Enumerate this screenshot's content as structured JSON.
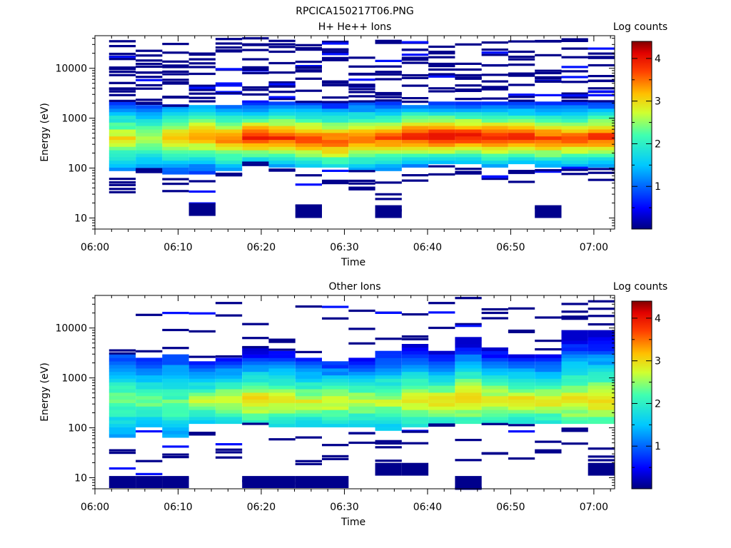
{
  "figure_title": "RPCICA150217T06.PNG",
  "chart_data": [
    {
      "type": "heatmap",
      "title": "H+ He++ Ions",
      "xlabel": "Time",
      "ylabel": "Energy (eV)",
      "y_scale": "log",
      "ylim": [
        6,
        45000
      ],
      "xlim_minutes": [
        0,
        62.5
      ],
      "x_ticks": [
        "06:00",
        "06:10",
        "06:20",
        "06:30",
        "06:40",
        "06:50",
        "07:00"
      ],
      "y_ticks": [
        "10",
        "100",
        "1000",
        "10000"
      ],
      "colorbar_label": "Log counts",
      "colorbar_ticks": [
        "1",
        "2",
        "3",
        "4"
      ],
      "colorbar_range": [
        0,
        4.4
      ],
      "columns": [
        {
          "time_min": [
            1.7,
            4.9
          ],
          "core_level": 3.0,
          "core_low": 90,
          "core_high": 2000,
          "peak": 400,
          "stripes_high": 18,
          "stripes_low": 5,
          "min_energy": 22
        },
        {
          "time_min": [
            4.9,
            8.1
          ],
          "core_level": 2.8,
          "core_low": 95,
          "core_high": 1900,
          "peak": 380,
          "stripes_high": 14,
          "stripes_low": 3,
          "min_energy": 80
        },
        {
          "time_min": [
            8.1,
            11.3
          ],
          "core_level": 3.2,
          "core_low": 70,
          "core_high": 1700,
          "peak": 420,
          "stripes_high": 14,
          "stripes_low": 3,
          "min_energy": 18
        },
        {
          "time_min": [
            11.3,
            14.5
          ],
          "core_level": 3.4,
          "core_low": 80,
          "core_high": 1800,
          "peak": 450,
          "stripes_high": 12,
          "stripes_low": 3,
          "min_energy": 11
        },
        {
          "time_min": [
            14.5,
            17.7
          ],
          "core_level": 3.5,
          "core_low": 90,
          "core_high": 1900,
          "peak": 380,
          "stripes_high": 13,
          "stripes_low": 3,
          "min_energy": 70
        },
        {
          "time_min": [
            17.7,
            20.9
          ],
          "core_level": 4.0,
          "core_low": 120,
          "core_high": 2000,
          "peak": 420,
          "stripes_high": 13,
          "stripes_low": 2,
          "min_energy": 110
        },
        {
          "time_min": [
            20.9,
            24.1
          ],
          "core_level": 3.9,
          "core_low": 110,
          "core_high": 2000,
          "peak": 420,
          "stripes_high": 14,
          "stripes_low": 2,
          "min_energy": 80
        },
        {
          "time_min": [
            24.1,
            27.3
          ],
          "core_level": 3.8,
          "core_low": 100,
          "core_high": 2100,
          "peak": 380,
          "stripes_high": 12,
          "stripes_low": 3,
          "min_energy": 10
        },
        {
          "time_min": [
            27.3,
            30.5
          ],
          "core_level": 3.8,
          "core_low": 100,
          "core_high": 2100,
          "peak": 350,
          "stripes_high": 13,
          "stripes_low": 4,
          "min_energy": 40
        },
        {
          "time_min": [
            30.5,
            33.7
          ],
          "core_level": 3.6,
          "core_low": 90,
          "core_high": 2000,
          "peak": 380,
          "stripes_high": 13,
          "stripes_low": 5,
          "min_energy": 35
        },
        {
          "time_min": [
            33.7,
            36.9
          ],
          "core_level": 3.7,
          "core_low": 90,
          "core_high": 2000,
          "peak": 400,
          "stripes_high": 12,
          "stripes_low": 4,
          "min_energy": 10
        },
        {
          "time_min": [
            36.9,
            40.1
          ],
          "core_level": 4.1,
          "core_low": 110,
          "core_high": 1900,
          "peak": 450,
          "stripes_high": 14,
          "stripes_low": 2,
          "min_energy": 45
        },
        {
          "time_min": [
            40.1,
            43.3
          ],
          "core_level": 4.2,
          "core_low": 120,
          "core_high": 2000,
          "peak": 450,
          "stripes_high": 12,
          "stripes_low": 2,
          "min_energy": 60
        },
        {
          "time_min": [
            43.3,
            46.5
          ],
          "core_level": 4.1,
          "core_low": 120,
          "core_high": 2000,
          "peak": 430,
          "stripes_high": 11,
          "stripes_low": 3,
          "min_energy": 75
        },
        {
          "time_min": [
            46.5,
            49.7
          ],
          "core_level": 4.0,
          "core_low": 110,
          "core_high": 2000,
          "peak": 420,
          "stripes_high": 12,
          "stripes_low": 4,
          "min_energy": 60
        },
        {
          "time_min": [
            49.7,
            52.9
          ],
          "core_level": 3.9,
          "core_low": 120,
          "core_high": 2000,
          "peak": 430,
          "stripes_high": 12,
          "stripes_low": 4,
          "min_energy": 50
        },
        {
          "time_min": [
            52.9,
            56.1
          ],
          "core_level": 3.8,
          "core_low": 110,
          "core_high": 2000,
          "peak": 400,
          "stripes_high": 11,
          "stripes_low": 3,
          "min_energy": 10
        },
        {
          "time_min": [
            56.1,
            59.3
          ],
          "core_level": 3.8,
          "core_low": 110,
          "core_high": 2000,
          "peak": 400,
          "stripes_high": 12,
          "stripes_low": 3,
          "min_energy": 70
        },
        {
          "time_min": [
            59.3,
            62.5
          ],
          "core_level": 3.9,
          "core_low": 110,
          "core_high": 2000,
          "peak": 420,
          "stripes_high": 14,
          "stripes_low": 3,
          "min_energy": 55
        }
      ]
    },
    {
      "type": "heatmap",
      "title": "Other Ions",
      "xlabel": "Time",
      "ylabel": "Energy (eV)",
      "y_scale": "log",
      "ylim": [
        6,
        45000
      ],
      "xlim_minutes": [
        0,
        62.5
      ],
      "x_ticks": [
        "06:00",
        "06:10",
        "06:20",
        "06:30",
        "06:40",
        "06:50",
        "07:00"
      ],
      "y_ticks": [
        "10",
        "100",
        "1000",
        "10000"
      ],
      "colorbar_label": "Log counts",
      "colorbar_ticks": [
        "1",
        "2",
        "3",
        "4"
      ],
      "colorbar_range": [
        0,
        4.4
      ],
      "columns": [
        {
          "time_min": [
            1.7,
            4.9
          ],
          "core_level": 2.4,
          "core_low": 60,
          "core_high": 2800,
          "peak": 350,
          "stripes_high": 2,
          "stripes_low": 3,
          "min_energy": 6
        },
        {
          "time_min": [
            4.9,
            8.1
          ],
          "core_level": 2.4,
          "core_low": 110,
          "core_high": 2700,
          "peak": 350,
          "stripes_high": 2,
          "stripes_low": 3,
          "min_energy": 6
        },
        {
          "time_min": [
            8.1,
            11.3
          ],
          "core_level": 2.4,
          "core_low": 60,
          "core_high": 3000,
          "peak": 300,
          "stripes_high": 3,
          "stripes_low": 4,
          "min_energy": 6
        },
        {
          "time_min": [
            11.3,
            14.5
          ],
          "core_level": 2.6,
          "core_low": 120,
          "core_high": 2000,
          "peak": 350,
          "stripes_high": 3,
          "stripes_low": 2,
          "min_energy": 40
        },
        {
          "time_min": [
            14.5,
            17.7
          ],
          "core_level": 2.9,
          "core_low": 120,
          "core_high": 2500,
          "peak": 350,
          "stripes_high": 3,
          "stripes_low": 4,
          "min_energy": 25
        },
        {
          "time_min": [
            17.7,
            20.9
          ],
          "core_level": 3.1,
          "core_low": 130,
          "core_high": 4000,
          "peak": 350,
          "stripes_high": 3,
          "stripes_low": 2,
          "min_energy": 6
        },
        {
          "time_min": [
            20.9,
            24.1
          ],
          "core_level": 3.0,
          "core_low": 110,
          "core_high": 3500,
          "peak": 350,
          "stripes_high": 3,
          "stripes_low": 3,
          "min_energy": 6
        },
        {
          "time_min": [
            24.1,
            27.3
          ],
          "core_level": 2.9,
          "core_low": 100,
          "core_high": 2400,
          "peak": 330,
          "stripes_high": 2,
          "stripes_low": 3,
          "min_energy": 6
        },
        {
          "time_min": [
            27.3,
            30.5
          ],
          "core_level": 2.9,
          "core_low": 100,
          "core_high": 2200,
          "peak": 330,
          "stripes_high": 2,
          "stripes_low": 3,
          "min_energy": 6
        },
        {
          "time_min": [
            30.5,
            33.7
          ],
          "core_level": 2.8,
          "core_low": 100,
          "core_high": 2500,
          "peak": 330,
          "stripes_high": 3,
          "stripes_low": 3,
          "min_energy": 30
        },
        {
          "time_min": [
            33.7,
            36.9
          ],
          "core_level": 2.7,
          "core_low": 90,
          "core_high": 3500,
          "peak": 330,
          "stripes_high": 3,
          "stripes_low": 4,
          "min_energy": 11
        },
        {
          "time_min": [
            36.9,
            40.1
          ],
          "core_level": 3.0,
          "core_low": 110,
          "core_high": 4500,
          "peak": 350,
          "stripes_high": 4,
          "stripes_low": 3,
          "min_energy": 11
        },
        {
          "time_min": [
            40.1,
            43.3
          ],
          "core_level": 3.0,
          "core_low": 120,
          "core_high": 3500,
          "peak": 350,
          "stripes_high": 3,
          "stripes_low": 3,
          "min_energy": 40
        },
        {
          "time_min": [
            43.3,
            46.5
          ],
          "core_level": 3.2,
          "core_low": 120,
          "core_high": 6500,
          "peak": 380,
          "stripes_high": 3,
          "stripes_low": 4,
          "min_energy": 6
        },
        {
          "time_min": [
            46.5,
            49.7
          ],
          "core_level": 3.0,
          "core_low": 120,
          "core_high": 4000,
          "peak": 350,
          "stripes_high": 3,
          "stripes_low": 3,
          "min_energy": 25
        },
        {
          "time_min": [
            49.7,
            52.9
          ],
          "core_level": 3.0,
          "core_low": 120,
          "core_high": 3000,
          "peak": 350,
          "stripes_high": 3,
          "stripes_low": 3,
          "min_energy": 20
        },
        {
          "time_min": [
            52.9,
            56.1
          ],
          "core_level": 3.0,
          "core_low": 120,
          "core_high": 3000,
          "peak": 350,
          "stripes_high": 3,
          "stripes_low": 3,
          "min_energy": 25
        },
        {
          "time_min": [
            56.1,
            59.3
          ],
          "core_level": 3.0,
          "core_low": 120,
          "core_high": 9000,
          "peak": 350,
          "stripes_high": 4,
          "stripes_low": 3,
          "min_energy": 30
        },
        {
          "time_min": [
            59.3,
            62.5
          ],
          "core_level": 3.1,
          "core_low": 120,
          "core_high": 9000,
          "peak": 350,
          "stripes_high": 4,
          "stripes_low": 3,
          "min_energy": 11
        }
      ]
    }
  ]
}
